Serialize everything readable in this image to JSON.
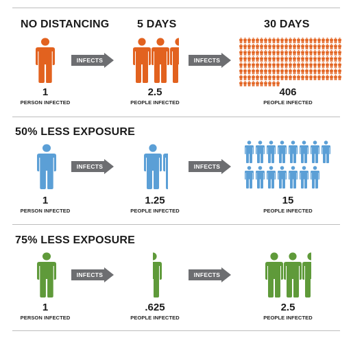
{
  "colors": {
    "orange": "#e2621f",
    "blue": "#5b9fd6",
    "green": "#5f9a3a",
    "arrow": "#6d6e71"
  },
  "icons": {
    "person": "person-icon",
    "arrow": "right-arrow-icon"
  },
  "arrow_label": "INFECTS",
  "rows": [
    {
      "title": "NO DISTANCING",
      "col2_title": "5 DAYS",
      "col3_title": "30 DAYS",
      "start": {
        "value": "1",
        "label": "PERSON INFECTED"
      },
      "mid": {
        "value": "2.5",
        "label": "PEOPLE INFECTED"
      },
      "end": {
        "value": "406",
        "label": "PEOPLE INFECTED"
      }
    },
    {
      "title": "50% LESS EXPOSURE",
      "start": {
        "value": "1",
        "label": "PERSON INFECTED"
      },
      "mid": {
        "value": "1.25",
        "label": "PEOPLE INFECTED"
      },
      "end": {
        "value": "15",
        "label": "PEOPLE INFECTED"
      }
    },
    {
      "title": "75% LESS EXPOSURE",
      "start": {
        "value": "1",
        "label": "PERSON INFECTED"
      },
      "mid": {
        "value": ".625",
        "label": "PEOPLE INFECTED"
      },
      "end": {
        "value": "2.5",
        "label": "PEOPLE INFECTED"
      }
    }
  ]
}
